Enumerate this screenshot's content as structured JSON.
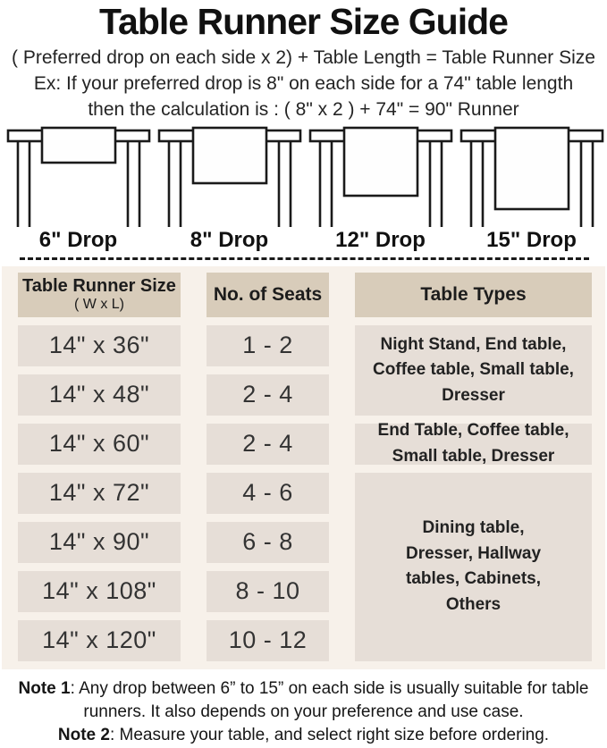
{
  "title": "Table Runner Size Guide",
  "formula": "( Preferred drop on each side x 2) + Table Length = Table Runner Size",
  "example": {
    "line1": "Ex: If your preferred drop is 8\" on each side for a 74\" table length",
    "line2": "then the calculation is : ( 8\" x 2 ) + 74\" = 90\" Runner"
  },
  "illustrations": [
    {
      "label": "6\" Drop",
      "runner_height": 39
    },
    {
      "label": "8\" Drop",
      "runner_height": 62
    },
    {
      "label": "12\" Drop",
      "runner_height": 76
    },
    {
      "label": "15\" Drop",
      "runner_height": 91
    }
  ],
  "size_table": {
    "header": {
      "size_title": "Table Runner Size",
      "size_subtitle": "( W x L)",
      "seats": "No. of Seats",
      "types": "Table Types"
    },
    "rows": [
      {
        "size": "14\" x 36\"",
        "seats": "1 - 2"
      },
      {
        "size": "14\" x 48\"",
        "seats": "2 - 4"
      },
      {
        "size": "14\" x 60\"",
        "seats": "2 - 4"
      },
      {
        "size": "14\" x 72\"",
        "seats": "4 - 6"
      },
      {
        "size": "14\" x 90\"",
        "seats": "6 - 8"
      },
      {
        "size": "14\" x 108\"",
        "seats": "8 - 10"
      },
      {
        "size": "14\" x 120\"",
        "seats": "10 - 12"
      }
    ],
    "type_groups": [
      {
        "text": "Night Stand, End table, Coffee table, Small table, Dresser",
        "applies_to_rows": [
          1,
          2
        ]
      },
      {
        "text": "End Table, Coffee table, Small table, Dresser",
        "applies_to_rows": [
          3
        ]
      },
      {
        "text": "Dining table, Dresser, Hallway tables, Cabinets, Others",
        "applies_to_rows": [
          4,
          5,
          6,
          7
        ]
      }
    ]
  },
  "notes": [
    {
      "label": "Note 1",
      "text": ": Any drop between 6” to 15” on each side is usually suitable for table runners. It also depends on your preference and use case."
    },
    {
      "label": "Note 2",
      "text": ": Measure your table, and select right size before ordering."
    }
  ],
  "colors": {
    "header_cell": "#d8ccba",
    "data_cell": "#e6ded7",
    "section_bg": "#f7f1ea",
    "text": "#1e1e1e",
    "line": "#1a1a1a"
  }
}
